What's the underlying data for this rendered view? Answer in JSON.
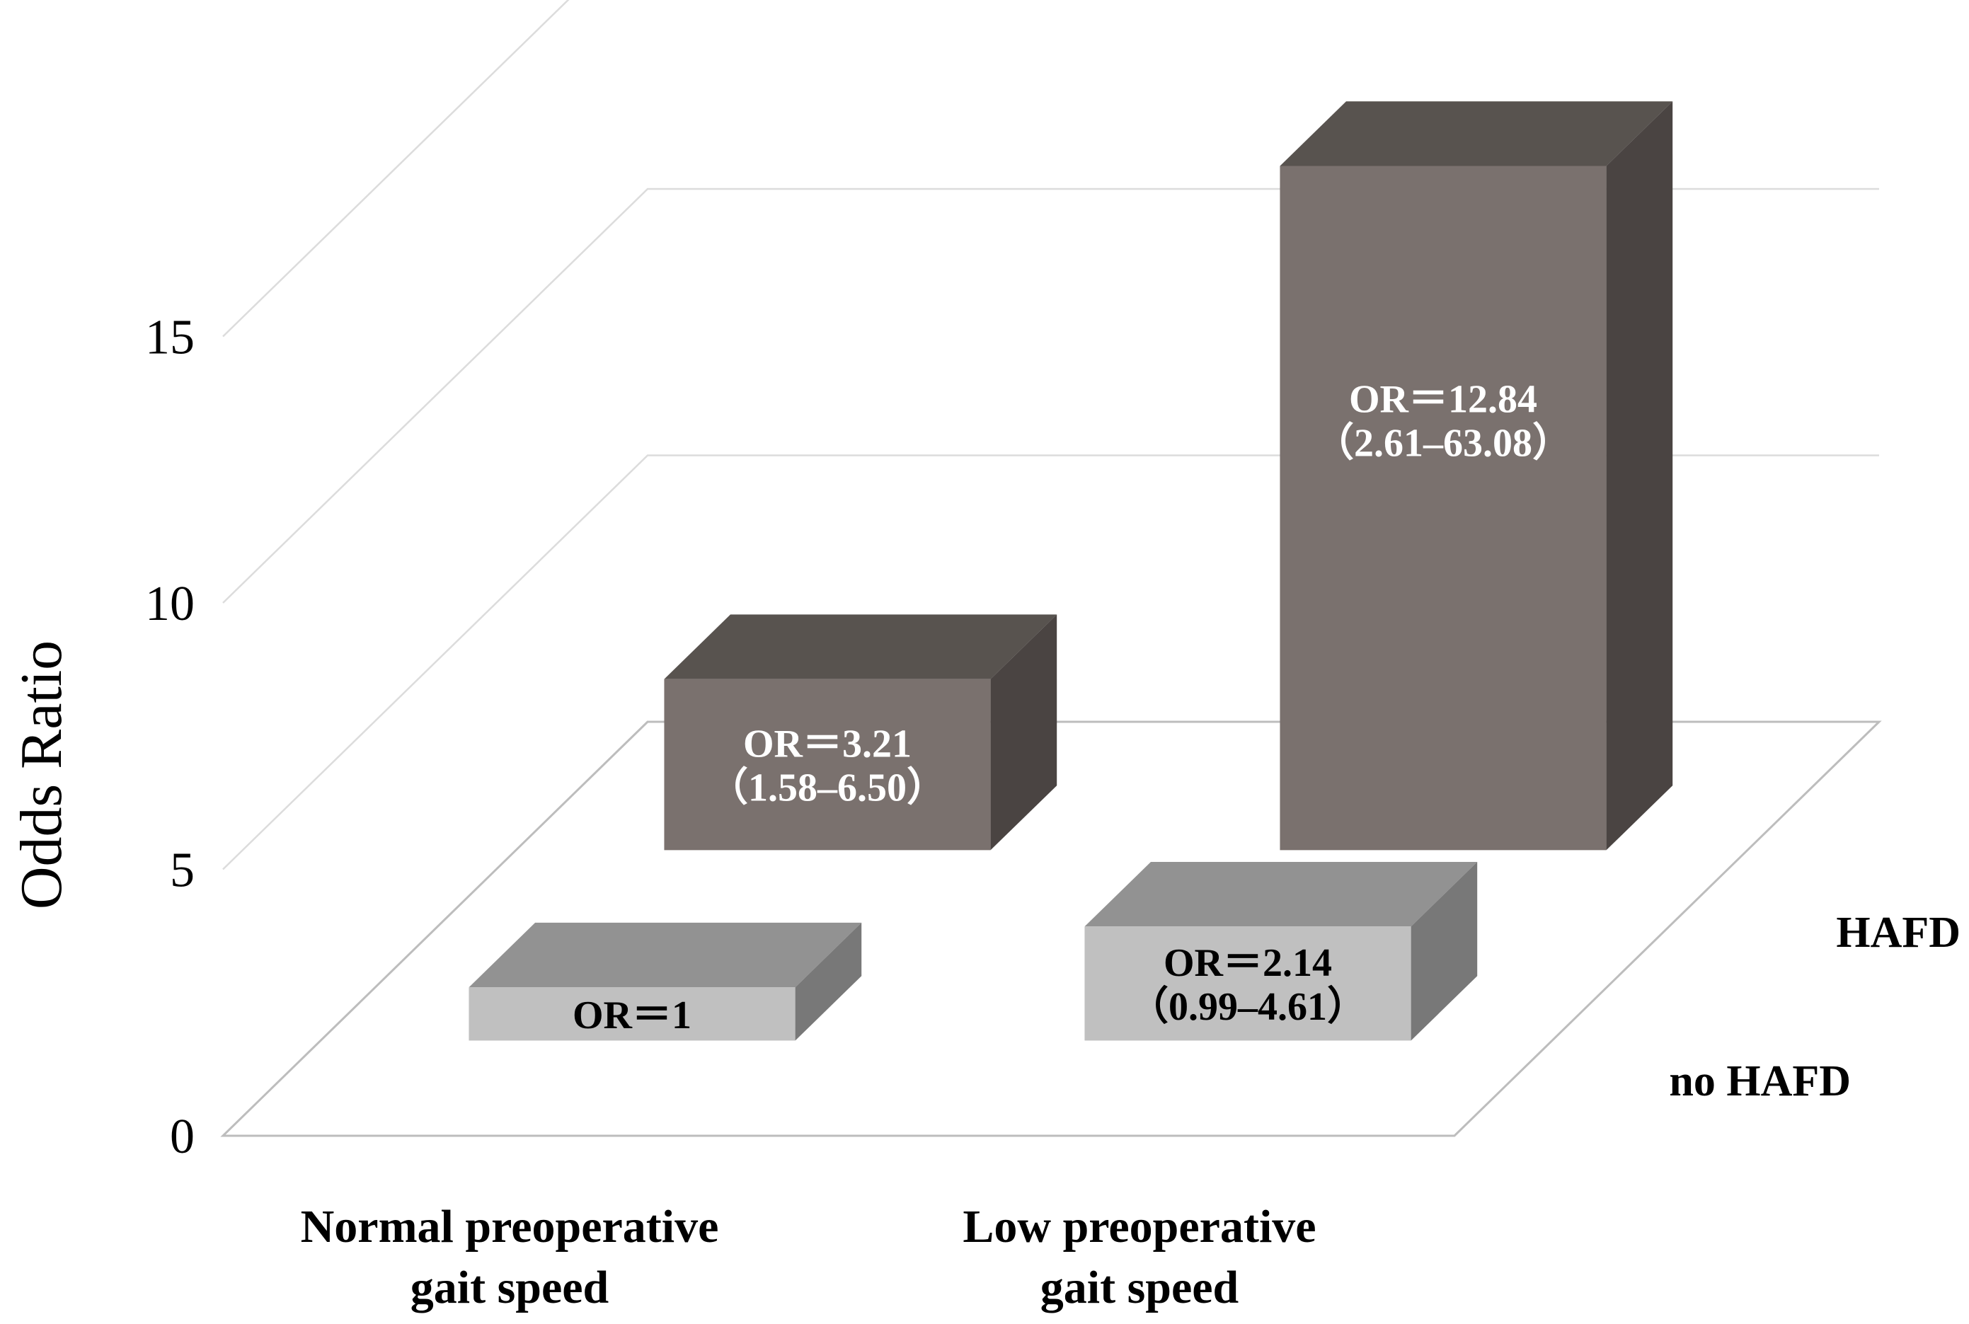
{
  "chart_data": {
    "type": "bar",
    "style": "3d-grouped-depth",
    "title": "",
    "xlabel": "",
    "ylabel": "Odds Ratio",
    "ylim": [
      0,
      15
    ],
    "yticks": [
      0,
      5,
      10,
      15
    ],
    "categories": [
      "Normal preoperative\ngait speed",
      "Low preoperative\ngait speed"
    ],
    "grid": true,
    "series": [
      {
        "name": "no HAFD",
        "color": "#c0c0c0",
        "values": [
          1,
          2.14
        ],
        "labels": [
          "OR＝1",
          "OR＝2.14\n（0.99–4.61）"
        ]
      },
      {
        "name": "HAFD",
        "color": "#7a716e",
        "values": [
          3.21,
          12.84
        ],
        "labels": [
          "OR＝3.21\n（1.58–6.50）",
          "OR＝12.84\n（2.61–63.08）"
        ]
      }
    ]
  }
}
